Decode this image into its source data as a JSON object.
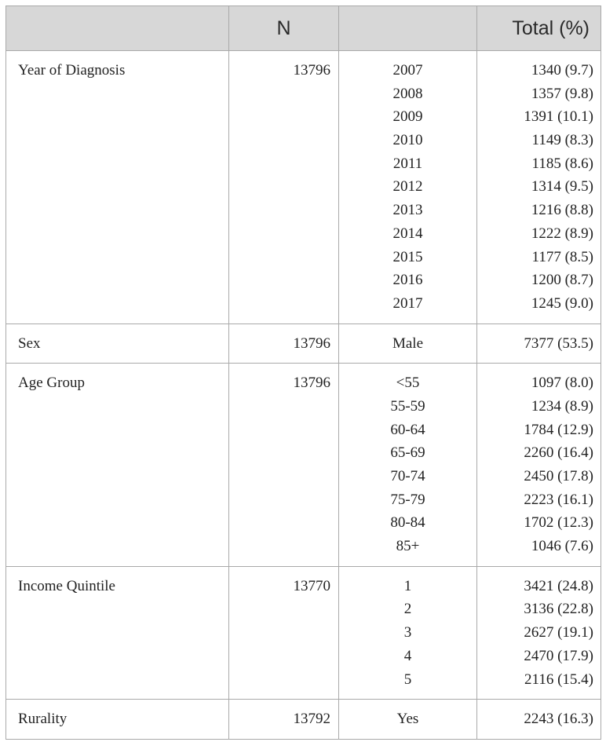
{
  "table": {
    "headers": [
      "",
      "N",
      "",
      "Total (%)"
    ],
    "groups": [
      {
        "variable": "Year of Diagnosis",
        "n": "13796",
        "categories": [
          "2007",
          "2008",
          "2009",
          "2010",
          "2011",
          "2012",
          "2013",
          "2014",
          "2015",
          "2016",
          "2017"
        ],
        "totals": [
          "1340 (9.7)",
          "1357 (9.8)",
          "1391 (10.1)",
          "1149 (8.3)",
          "1185 (8.6)",
          "1314 (9.5)",
          "1216 (8.8)",
          "1222 (8.9)",
          "1177 (8.5)",
          "1200 (8.7)",
          "1245 (9.0)"
        ]
      },
      {
        "variable": "Sex",
        "n": "13796",
        "categories": [
          "Male"
        ],
        "totals": [
          "7377 (53.5)"
        ]
      },
      {
        "variable": "Age Group",
        "n": "13796",
        "categories": [
          "<55",
          "55-59",
          "60-64",
          "65-69",
          "70-74",
          "75-79",
          "80-84",
          "85+"
        ],
        "totals": [
          "1097 (8.0)",
          "1234 (8.9)",
          "1784 (12.9)",
          "2260 (16.4)",
          "2450 (17.8)",
          "2223 (16.1)",
          "1702 (12.3)",
          "1046 (7.6)"
        ]
      },
      {
        "variable": "Income Quintile",
        "n": "13770",
        "categories": [
          "1",
          "2",
          "3",
          "4",
          "5"
        ],
        "totals": [
          "3421 (24.8)",
          "3136 (22.8)",
          "2627 (19.1)",
          "2470 (17.9)",
          "2116 (15.4)"
        ]
      },
      {
        "variable": "Rurality",
        "n": "13792",
        "categories": [
          "Yes"
        ],
        "totals": [
          "2243 (16.3)"
        ]
      }
    ]
  }
}
